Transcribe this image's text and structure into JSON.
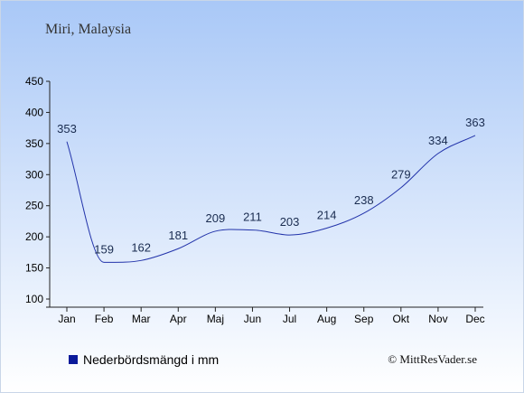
{
  "chart_data": {
    "type": "line",
    "title": "Miri, Malaysia",
    "categories": [
      "Jan",
      "Feb",
      "Mar",
      "Apr",
      "Maj",
      "Jun",
      "Jul",
      "Aug",
      "Sep",
      "Okt",
      "Nov",
      "Dec"
    ],
    "series": [
      {
        "name": "Nederbördsmängd i mm",
        "values": [
          353,
          159,
          162,
          181,
          209,
          211,
          203,
          214,
          238,
          279,
          334,
          363
        ]
      }
    ],
    "ylim": [
      100,
      450
    ],
    "yticks": [
      100,
      150,
      200,
      250,
      300,
      350,
      400,
      450
    ],
    "grid": false,
    "legend": "bottom-left",
    "line_color": "#2233aa",
    "legend_marker_color": "#0a1a9a",
    "background_top": "#a9c8f7",
    "background_bottom": "#ffffff"
  },
  "credit": "© MittResVader.se"
}
